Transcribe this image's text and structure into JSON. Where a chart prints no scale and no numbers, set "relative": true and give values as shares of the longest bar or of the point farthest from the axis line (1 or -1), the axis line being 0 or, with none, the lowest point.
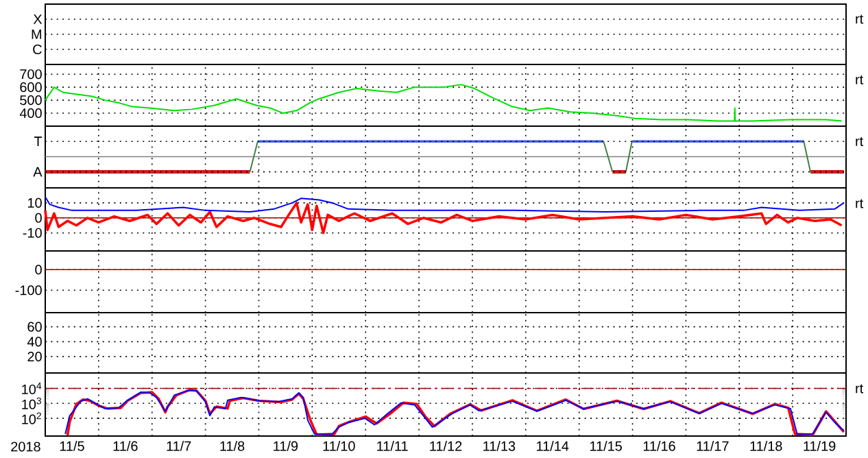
{
  "chart_data": [
    {
      "type": "other",
      "annotations": [
        "X",
        "M",
        "C",
        "rt"
      ]
    },
    {
      "type": "line",
      "xlim": [
        "2018-11-05",
        "2018-11-20"
      ],
      "xticks": [
        {
          "value": "2018-11-06",
          "label": null
        },
        {
          "value": "2018-11-07",
          "label": null
        },
        {
          "value": "2018-11-08",
          "label": null
        },
        {
          "value": "2018-11-09",
          "label": null
        },
        {
          "value": "2018-11-10",
          "label": null
        },
        {
          "value": "2018-11-11",
          "label": null
        },
        {
          "value": "2018-11-12",
          "label": null
        },
        {
          "value": "2018-11-13",
          "label": null
        },
        {
          "value": "2018-11-14",
          "label": null
        },
        {
          "value": "2018-11-15",
          "label": null
        },
        {
          "value": "2018-11-16",
          "label": null
        },
        {
          "value": "2018-11-17",
          "label": null
        },
        {
          "value": "2018-11-18",
          "label": null
        },
        {
          "value": "2018-11-19",
          "label": null
        }
      ],
      "ylim": [
        300,
        775
      ],
      "yticks": [
        400,
        500,
        600,
        700
      ],
      "grid": true,
      "tick_labels": "y",
      "annotations": [
        "rt"
      ],
      "series": [
        {
          "color": "#00e000",
          "x": [
            "2018-11-05T00:00",
            "2018-11-05T04:00",
            "2018-11-05T08:00",
            "2018-11-05T21:00",
            "2018-11-06T03:00",
            "2018-11-06T09:00",
            "2018-11-06T15:00",
            "2018-11-06T23:00",
            "2018-11-07T10:00",
            "2018-11-07T18:00",
            "2018-11-08T04:00",
            "2018-11-08T10:00",
            "2018-11-08T14:00",
            "2018-11-08T23:00",
            "2018-11-09T05:00",
            "2018-11-09T11:00",
            "2018-11-09T17:00",
            "2018-11-09T23:00",
            "2018-11-10T03:00",
            "2018-11-10T12:00",
            "2018-11-10T20:00",
            "2018-11-11T06:00",
            "2018-11-11T14:00",
            "2018-11-11T22:00",
            "2018-11-12T02:00",
            "2018-11-12T11:00",
            "2018-11-12T19:00",
            "2018-11-13T01:00",
            "2018-11-13T09:00",
            "2018-11-13T18:00",
            "2018-11-14T02:00",
            "2018-11-14T10:00",
            "2018-11-14T20:00",
            "2018-11-15T06:00",
            "2018-11-15T17:00",
            "2018-11-16T01:00",
            "2018-11-16T13:00",
            "2018-11-17T01:00",
            "2018-11-17T14:00",
            "2018-11-17T21:50",
            "2018-11-17T22:00",
            "2018-11-17T22:10",
            "2018-11-18T06:00",
            "2018-11-18T23:00",
            "2018-11-19T15:00",
            "2018-11-19T22:00"
          ],
          "values": [
            500,
            600,
            560,
            530,
            500,
            480,
            450,
            440,
            420,
            430,
            460,
            490,
            510,
            460,
            440,
            400,
            420,
            480,
            510,
            560,
            590,
            570,
            560,
            600,
            600,
            600,
            620,
            590,
            520,
            450,
            420,
            440,
            410,
            400,
            380,
            360,
            350,
            350,
            340,
            340,
            440,
            340,
            340,
            350,
            350,
            340
          ]
        }
      ]
    },
    {
      "type": "line",
      "xlim": [
        "2018-11-05",
        "2018-11-20"
      ],
      "xticks": [
        {
          "value": "2018-11-06",
          "label": null
        },
        {
          "value": "2018-11-07",
          "label": null
        },
        {
          "value": "2018-11-08",
          "label": null
        },
        {
          "value": "2018-11-09",
          "label": null
        },
        {
          "value": "2018-11-10",
          "label": null
        },
        {
          "value": "2018-11-11",
          "label": null
        },
        {
          "value": "2018-11-12",
          "label": null
        },
        {
          "value": "2018-11-13",
          "label": null
        },
        {
          "value": "2018-11-14",
          "label": null
        },
        {
          "value": "2018-11-15",
          "label": null
        },
        {
          "value": "2018-11-16",
          "label": null
        },
        {
          "value": "2018-11-17",
          "label": null
        },
        {
          "value": "2018-11-18",
          "label": null
        },
        {
          "value": "2018-11-19",
          "label": null
        }
      ],
      "relative": true,
      "grid": "x",
      "tick_labels": false,
      "annotations": [
        "T",
        "A",
        "rt"
      ],
      "series": [
        {
          "color": "#cc2020",
          "x": [
            "2018-11-05T00:00",
            "2018-11-08T20:00",
            "2018-11-08T22:00",
            "2018-11-15T15:00",
            "2018-11-15T21:00",
            "2018-11-15T22:00",
            "2018-11-19T08:00",
            "2018-11-19T23:00"
          ],
          "values": [
            -1,
            -1,
            null,
            -1,
            -1,
            null,
            -1,
            -1
          ]
        },
        {
          "color": "#4060e0",
          "x": [
            "2018-11-08T23:30",
            "2018-11-15T11:00",
            "2018-11-15T12:00",
            "2018-11-15T23:45",
            "2018-11-19T05:00"
          ],
          "values": [
            1,
            1,
            null,
            1,
            1
          ]
        },
        {
          "color": "#408040",
          "x": [
            "2018-11-08T20:00",
            "2018-11-08T23:30",
            "2018-11-09T00:00",
            "2018-11-15T11:00",
            "2018-11-15T15:00",
            "2018-11-15T16:00",
            "2018-11-15T21:00",
            "2018-11-15T23:45",
            "2018-11-16T00:00",
            "2018-11-19T05:00",
            "2018-11-19T08:00"
          ],
          "values": [
            -1,
            1,
            null,
            1,
            -1,
            null,
            -1,
            1,
            null,
            1,
            -1
          ]
        }
      ]
    },
    {
      "type": "line",
      "xlim": [
        "2018-11-05",
        "2018-11-20"
      ],
      "xticks": [
        {
          "value": "2018-11-06",
          "label": null
        },
        {
          "value": "2018-11-07",
          "label": null
        },
        {
          "value": "2018-11-08",
          "label": null
        },
        {
          "value": "2018-11-09",
          "label": null
        },
        {
          "value": "2018-11-10",
          "label": null
        },
        {
          "value": "2018-11-11",
          "label": null
        },
        {
          "value": "2018-11-12",
          "label": null
        },
        {
          "value": "2018-11-13",
          "label": null
        },
        {
          "value": "2018-11-14",
          "label": null
        },
        {
          "value": "2018-11-15",
          "label": null
        },
        {
          "value": "2018-11-16",
          "label": null
        },
        {
          "value": "2018-11-17",
          "label": null
        },
        {
          "value": "2018-11-18",
          "label": null
        },
        {
          "value": "2018-11-19",
          "label": null
        }
      ],
      "ylim": [
        -22,
        20
      ],
      "yticks": [
        -10,
        0,
        10
      ],
      "grid": true,
      "tick_labels": "y",
      "annotations": [
        "rt"
      ],
      "ref_lines": [
        {
          "axis": "y",
          "value": 0,
          "color": "#a00000"
        }
      ],
      "series": [
        {
          "color": "#ff0000",
          "x": [
            "2018-11-05T00:00",
            "2018-11-05T01:00",
            "2018-11-05T04:00",
            "2018-11-05T06:00",
            "2018-11-05T10:00",
            "2018-11-05T14:00",
            "2018-11-05T19:00",
            "2018-11-06T00:00",
            "2018-11-06T07:00",
            "2018-11-06T14:00",
            "2018-11-06T22:00",
            "2018-11-07T02:00",
            "2018-11-07T07:00",
            "2018-11-07T12:00",
            "2018-11-07T17:00",
            "2018-11-07T22:00",
            "2018-11-08T02:00",
            "2018-11-08T05:00",
            "2018-11-08T10:00",
            "2018-11-08T17:00",
            "2018-11-08T22:00",
            "2018-11-09T05:00",
            "2018-11-09T10:00",
            "2018-11-09T13:00",
            "2018-11-09T17:00",
            "2018-11-09T19:00",
            "2018-11-09T22:00",
            "2018-11-10T00:00",
            "2018-11-10T02:00",
            "2018-11-10T05:00",
            "2018-11-10T07:00",
            "2018-11-10T12:00",
            "2018-11-10T19:00",
            "2018-11-11T02:00",
            "2018-11-11T12:00",
            "2018-11-11T19:00",
            "2018-11-12T02:00",
            "2018-11-12T10:00",
            "2018-11-12T17:00",
            "2018-11-13T00:00",
            "2018-11-13T12:00",
            "2018-11-14T00:00",
            "2018-11-14T12:00",
            "2018-11-15T00:00",
            "2018-11-15T12:00",
            "2018-11-16T00:00",
            "2018-11-16T12:00",
            "2018-11-17T00:00",
            "2018-11-17T12:00",
            "2018-11-18T00:00",
            "2018-11-18T10:00",
            "2018-11-18T12:00",
            "2018-11-18T17:00",
            "2018-11-18T22:00",
            "2018-11-19T02:00",
            "2018-11-19T10:00",
            "2018-11-19T17:00",
            "2018-11-19T22:00"
          ],
          "values": [
            5,
            -8,
            3,
            -6,
            -2,
            -5,
            0,
            -3,
            1,
            -2,
            2,
            -4,
            3,
            -5,
            2,
            -3,
            4,
            -6,
            1,
            -2,
            0,
            -4,
            -6,
            1,
            10,
            -3,
            9,
            -8,
            8,
            -10,
            2,
            -2,
            3,
            -2,
            3,
            -4,
            0,
            -3,
            2,
            -2,
            1,
            -1,
            2,
            -1,
            0,
            1,
            -1,
            2,
            -1,
            1,
            3,
            -4,
            2,
            -3,
            0,
            -2,
            -1,
            -5
          ]
        },
        {
          "color": "#0000ff",
          "x": [
            "2018-11-05T00:00",
            "2018-11-05T02:00",
            "2018-11-05T06:00",
            "2018-11-05T12:00",
            "2018-11-05T23:45",
            "2018-11-06T17:00",
            "2018-11-07T14:00",
            "2018-11-08T00:00",
            "2018-11-08T20:00",
            "2018-11-09T07:00",
            "2018-11-09T15:00",
            "2018-11-09T19:00",
            "2018-11-10T03:00",
            "2018-11-10T09:00",
            "2018-11-10T16:00",
            "2018-11-11T12:00",
            "2018-11-12T02:00",
            "2018-11-13T19:00",
            "2018-11-15T12:00",
            "2018-11-17T06:00",
            "2018-11-18T02:00",
            "2018-11-18T10:00",
            "2018-11-19T03:00",
            "2018-11-19T19:00",
            "2018-11-19T23:00"
          ],
          "values": [
            14,
            9,
            7,
            5,
            5,
            5,
            7,
            5,
            4,
            6,
            10,
            13,
            12,
            10,
            6,
            5,
            5,
            5,
            4,
            5,
            5,
            7,
            5,
            6,
            10
          ]
        }
      ]
    },
    {
      "type": "line",
      "xlim": [
        "2018-11-05",
        "2018-11-20"
      ],
      "xticks": [
        {
          "value": "2018-11-06",
          "label": null
        },
        {
          "value": "2018-11-07",
          "label": null
        },
        {
          "value": "2018-11-08",
          "label": null
        },
        {
          "value": "2018-11-09",
          "label": null
        },
        {
          "value": "2018-11-10",
          "label": null
        },
        {
          "value": "2018-11-11",
          "label": null
        },
        {
          "value": "2018-11-12",
          "label": null
        },
        {
          "value": "2018-11-13",
          "label": null
        },
        {
          "value": "2018-11-14",
          "label": null
        },
        {
          "value": "2018-11-15",
          "label": null
        },
        {
          "value": "2018-11-16",
          "label": null
        },
        {
          "value": "2018-11-17",
          "label": null
        },
        {
          "value": "2018-11-18",
          "label": null
        },
        {
          "value": "2018-11-19",
          "label": null
        }
      ],
      "ylim": [
        -209,
        91
      ],
      "yticks": [
        -100,
        0
      ],
      "grid": true,
      "tick_labels": "y",
      "ref_lines": [
        {
          "axis": "y",
          "value": 0,
          "color": "#a00000"
        }
      ]
    },
    {
      "type": "line",
      "xlim": [
        "2018-11-05",
        "2018-11-20"
      ],
      "xticks": [
        {
          "value": "2018-11-06",
          "label": null
        },
        {
          "value": "2018-11-07",
          "label": null
        },
        {
          "value": "2018-11-08",
          "label": null
        },
        {
          "value": "2018-11-09",
          "label": null
        },
        {
          "value": "2018-11-10",
          "label": null
        },
        {
          "value": "2018-11-11",
          "label": null
        },
        {
          "value": "2018-11-12",
          "label": null
        },
        {
          "value": "2018-11-13",
          "label": null
        },
        {
          "value": "2018-11-14",
          "label": null
        },
        {
          "value": "2018-11-15",
          "label": null
        },
        {
          "value": "2018-11-16",
          "label": null
        },
        {
          "value": "2018-11-17",
          "label": null
        },
        {
          "value": "2018-11-18",
          "label": null
        },
        {
          "value": "2018-11-19",
          "label": null
        }
      ],
      "ylim": [
        -2,
        79
      ],
      "yticks": [
        20,
        40,
        60
      ],
      "grid": true,
      "tick_labels": "y"
    },
    {
      "type": "line",
      "xlabel": "2018",
      "log": true,
      "xlim": [
        "2018-11-05",
        "2018-11-20"
      ],
      "xticks": [
        {
          "value": "2018-11-06",
          "label": null
        },
        {
          "value": "2018-11-07",
          "label": null
        },
        {
          "value": "2018-11-08",
          "label": null
        },
        {
          "value": "2018-11-09",
          "label": null
        },
        {
          "value": "2018-11-10",
          "label": null
        },
        {
          "value": "2018-11-11",
          "label": null
        },
        {
          "value": "2018-11-12",
          "label": null
        },
        {
          "value": "2018-11-13",
          "label": null
        },
        {
          "value": "2018-11-14",
          "label": null
        },
        {
          "value": "2018-11-15",
          "label": null
        },
        {
          "value": "2018-11-16",
          "label": null
        },
        {
          "value": "2018-11-17",
          "label": null
        },
        {
          "value": "2018-11-18",
          "label": null
        },
        {
          "value": "2018-11-19",
          "label": null
        },
        {
          "value": "2018-11-05T12:00",
          "label": "11/5"
        },
        {
          "value": "2018-11-06T12:00",
          "label": "11/6"
        },
        {
          "value": "2018-11-07T12:00",
          "label": "11/7"
        },
        {
          "value": "2018-11-08T12:00",
          "label": "11/8"
        },
        {
          "value": "2018-11-09T12:00",
          "label": "11/9"
        },
        {
          "value": "2018-11-10T12:00",
          "label": "11/10"
        },
        {
          "value": "2018-11-11T12:00",
          "label": "11/11"
        },
        {
          "value": "2018-11-12T12:00",
          "label": "11/12"
        },
        {
          "value": "2018-11-13T12:00",
          "label": "11/13"
        },
        {
          "value": "2018-11-14T12:00",
          "label": "11/14"
        },
        {
          "value": "2018-11-15T12:00",
          "label": "11/15"
        },
        {
          "value": "2018-11-16T12:00",
          "label": "11/16"
        },
        {
          "value": "2018-11-17T12:00",
          "label": "11/17"
        },
        {
          "value": "2018-11-18T12:00",
          "label": "11/18"
        },
        {
          "value": "2018-11-19T12:00",
          "label": "11/19"
        }
      ],
      "ylim": [
        6.5,
        107000
      ],
      "yticks": [
        {
          "value": 100,
          "label": "10$^{2}$"
        },
        {
          "value": 1000,
          "label": "10$^{3}$"
        },
        {
          "value": 10000,
          "label": "10$^{4}$"
        }
      ],
      "grid": true,
      "annotations": [
        "rt"
      ],
      "ref_lines": [
        {
          "axis": "y",
          "value": 10000,
          "color": "#a00000",
          "line_style": "dashed"
        }
      ],
      "series": [
        {
          "color": "#ff0000",
          "x": [
            "2018-11-05T10:00",
            "2018-11-05T11:00",
            "2018-11-05T14:00",
            "2018-11-05T17:00",
            "2018-11-05T20:00",
            "2018-11-06T00:00",
            "2018-11-06T04:00",
            "2018-11-06T10:00",
            "2018-11-06T13:00",
            "2018-11-06T19:00",
            "2018-11-07T00:00",
            "2018-11-07T03:00",
            "2018-11-07T06:00",
            "2018-11-07T07:00",
            "2018-11-07T11:00",
            "2018-11-07T17:00",
            "2018-11-07T20:00",
            "2018-11-08T00:00",
            "2018-11-08T02:00",
            "2018-11-08T05:00",
            "2018-11-08T10:00",
            "2018-11-08T11:00",
            "2018-11-08T17:00",
            "2018-11-09T00:00",
            "2018-11-09T10:00",
            "2018-11-09T15:00",
            "2018-11-09T18:00",
            "2018-11-09T20:00",
            "2018-11-09T23:00",
            "2018-11-10T02:00",
            "2018-11-10T10:00",
            "2018-11-10T12:00",
            "2018-11-10T17:00",
            "2018-11-11T00:00",
            "2018-11-11T05:00",
            "2018-11-11T11:00",
            "2018-11-11T17:00",
            "2018-11-11T23:00",
            "2018-11-12T03:00",
            "2018-11-12T07:00",
            "2018-11-12T14:00",
            "2018-11-12T23:00",
            "2018-11-13T04:00",
            "2018-11-13T18:00",
            "2018-11-14T05:00",
            "2018-11-14T18:00",
            "2018-11-15T02:00",
            "2018-11-15T17:00",
            "2018-11-16T05:00",
            "2018-11-16T17:00",
            "2018-11-17T06:00",
            "2018-11-17T16:00",
            "2018-11-18T06:00",
            "2018-11-18T16:00",
            "2018-11-18T22:00",
            "2018-11-19T01:00",
            "2018-11-19T09:00",
            "2018-11-19T15:00",
            "2018-11-19T19:00",
            "2018-11-19T23:00"
          ],
          "values": [
            7,
            60,
            900,
            1800,
            1500,
            700,
            450,
            500,
            1500,
            5000,
            5500,
            2000,
            250,
            600,
            3500,
            8000,
            7000,
            1500,
            200,
            600,
            450,
            1500,
            2300,
            1500,
            1200,
            1800,
            4500,
            2000,
            90,
            8,
            9,
            30,
            60,
            130,
            45,
            200,
            1100,
            900,
            120,
            30,
            200,
            850,
            330,
            1600,
            320,
            1800,
            420,
            1500,
            420,
            1400,
            220,
            1100,
            200,
            900,
            500,
            9,
            8,
            290,
            60,
            12
          ]
        },
        {
          "color": "#0000ff",
          "x": [
            "2018-11-05T09:00",
            "2018-11-05T11:00",
            "2018-11-05T16:00",
            "2018-11-05T19:00",
            "2018-11-05T23:45",
            "2018-11-06T03:00",
            "2018-11-06T09:00",
            "2018-11-06T13:00",
            "2018-11-06T19:00",
            "2018-11-06T23:00",
            "2018-11-07T02:00",
            "2018-11-07T06:00",
            "2018-11-07T10:00",
            "2018-11-07T16:00",
            "2018-11-07T20:00",
            "2018-11-08T00:00",
            "2018-11-08T02:00",
            "2018-11-08T04:00",
            "2018-11-08T09:00",
            "2018-11-08T10:00",
            "2018-11-08T16:00",
            "2018-11-09T01:00",
            "2018-11-09T09:00",
            "2018-11-09T15:00",
            "2018-11-09T18:00",
            "2018-11-09T20:00",
            "2018-11-09T22:00",
            "2018-11-10T01:00",
            "2018-11-10T09:00",
            "2018-11-10T12:00",
            "2018-11-10T16:00",
            "2018-11-10T23:45",
            "2018-11-11T04:00",
            "2018-11-11T10:00",
            "2018-11-11T16:00",
            "2018-11-11T22:00",
            "2018-11-12T02:00",
            "2018-11-12T06:00",
            "2018-11-12T15:00",
            "2018-11-12T23:00",
            "2018-11-13T03:00",
            "2018-11-13T18:00",
            "2018-11-14T05:00",
            "2018-11-14T18:00",
            "2018-11-15T02:00",
            "2018-11-15T17:00",
            "2018-11-16T05:00",
            "2018-11-16T17:00",
            "2018-11-17T06:00",
            "2018-11-17T16:00",
            "2018-11-18T06:00",
            "2018-11-18T16:00",
            "2018-11-18T23:00",
            "2018-11-19T02:00",
            "2018-11-19T09:00",
            "2018-11-19T15:00",
            "2018-11-19T19:00",
            "2018-11-19T23:00"
          ],
          "values": [
            9,
            150,
            1400,
            2000,
            800,
            440,
            500,
            1600,
            5600,
            5000,
            2500,
            300,
            3500,
            7000,
            7000,
            1300,
            150,
            580,
            440,
            1600,
            2500,
            1400,
            1300,
            2000,
            5000,
            2500,
            75,
            9,
            9,
            26,
            52,
            100,
            37,
            210,
            1070,
            800,
            150,
            26,
            210,
            800,
            320,
            1400,
            300,
            1600,
            440,
            1400,
            440,
            1300,
            210,
            1000,
            210,
            800,
            440,
            9,
            9,
            260,
            52,
            15
          ]
        }
      ]
    }
  ]
}
